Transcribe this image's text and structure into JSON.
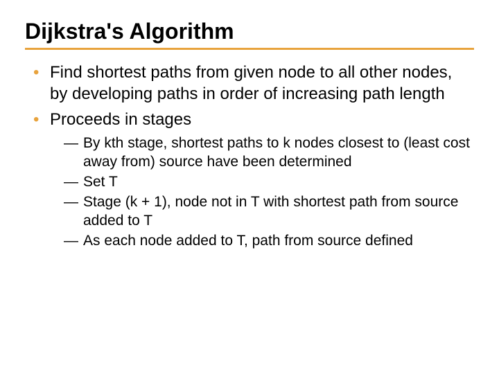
{
  "title": "Dijkstra's Algorithm",
  "title_fontsize": 32,
  "title_color": "#000000",
  "rule_color": "#e8a33d",
  "bullet_color": "#e8a33d",
  "body_color": "#000000",
  "level1_fontsize": 24,
  "level2_fontsize": 21,
  "bullets": {
    "b0": "Find shortest paths from given node to all other nodes, by developing paths in order of increasing path length",
    "b1": "Proceeds in stages"
  },
  "subbullets": {
    "s0": "By kth stage, shortest paths to k nodes closest to (least cost away from) source have been determined",
    "s1": "Set T",
    "s2": "Stage (k + 1), node not in T with shortest path from source added to T",
    "s3": "As each node added to T, path from source defined"
  }
}
